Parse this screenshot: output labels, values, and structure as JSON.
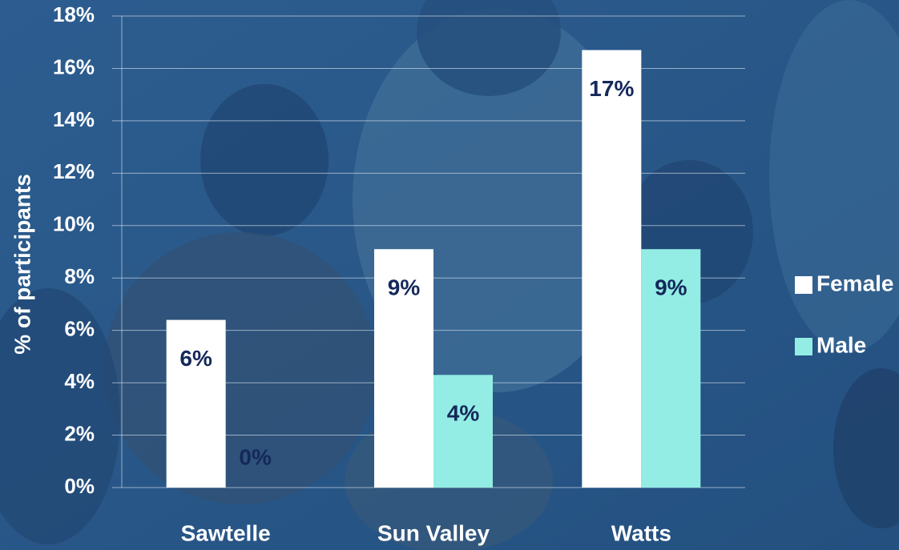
{
  "chart_data": {
    "type": "bar",
    "ylabel": "% of participants",
    "categories": [
      "Sawtelle",
      "Sun Valley",
      "Watts"
    ],
    "series": [
      {
        "name": "Female",
        "color": "#ffffff",
        "values": [
          6.4,
          9.1,
          16.7
        ],
        "value_labels": [
          "6%",
          "9%",
          "17%"
        ]
      },
      {
        "name": "Male",
        "color": "#93ede4",
        "values": [
          0,
          4.3,
          9.1
        ],
        "value_labels": [
          "0%",
          "4%",
          "9%"
        ]
      }
    ],
    "ylim": [
      0,
      18
    ],
    "yticks": [
      {
        "value": 0,
        "label": "0%"
      },
      {
        "value": 2,
        "label": "2%"
      },
      {
        "value": 4,
        "label": "4%"
      },
      {
        "value": 6,
        "label": "6%"
      },
      {
        "value": 8,
        "label": "8%"
      },
      {
        "value": 10,
        "label": "10%"
      },
      {
        "value": 12,
        "label": "12%"
      },
      {
        "value": 14,
        "label": "14%"
      },
      {
        "value": 16,
        "label": "16%"
      },
      {
        "value": 18,
        "label": "18%"
      }
    ],
    "grid": true,
    "legend": "right"
  }
}
